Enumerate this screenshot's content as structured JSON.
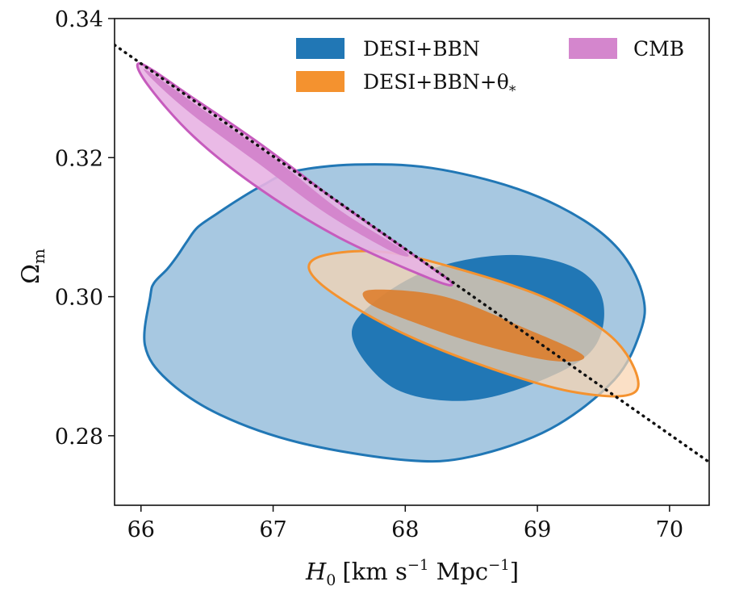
{
  "chart_data": {
    "type": "contour",
    "xlabel": {
      "main": "H",
      "sub": "0",
      "units": "[km s",
      "exp1": "−1",
      "mid": " Mpc",
      "exp2": "−1",
      "end": "]"
    },
    "ylabel": {
      "main": "Ω",
      "sub": "m"
    },
    "xlim": [
      65.8,
      70.3
    ],
    "ylim": [
      0.27,
      0.34
    ],
    "xticks": [
      66,
      67,
      68,
      69,
      70
    ],
    "yticks": [
      0.28,
      0.3,
      0.32,
      0.34
    ],
    "xtick_labels": [
      "66",
      "67",
      "68",
      "69",
      "70"
    ],
    "ytick_labels": [
      "0.28",
      "0.30",
      "0.32",
      "0.34"
    ],
    "legend": {
      "position": "top-center",
      "entries": [
        {
          "id": "desi",
          "label": "DESI+BBN",
          "color": "#2177b5"
        },
        {
          "id": "theta",
          "label": "DESI+BBN+θ",
          "sub": "*",
          "color": "#f4922f"
        },
        {
          "id": "cmb",
          "label": "CMB",
          "color": "#d486cd"
        }
      ]
    },
    "series": [
      {
        "id": "desi",
        "outer_fill": "#a7c8e1",
        "inner_fill": "#2177b5",
        "edge": "#2177b5",
        "contour_95": [
          [
            66.07,
            0.3
          ],
          [
            66.1,
            0.302
          ],
          [
            66.2,
            0.304
          ],
          [
            66.28,
            0.306
          ],
          [
            66.35,
            0.308
          ],
          [
            66.43,
            0.31
          ],
          [
            66.58,
            0.312
          ],
          [
            66.74,
            0.314
          ],
          [
            66.92,
            0.316
          ],
          [
            67.15,
            0.318
          ],
          [
            67.62,
            0.319
          ],
          [
            68.2,
            0.3185
          ],
          [
            68.85,
            0.3155
          ],
          [
            69.35,
            0.311
          ],
          [
            69.65,
            0.306
          ],
          [
            69.8,
            0.3
          ],
          [
            69.78,
            0.295
          ],
          [
            69.58,
            0.288
          ],
          [
            69.1,
            0.281
          ],
          [
            68.5,
            0.277
          ],
          [
            68.0,
            0.2765
          ],
          [
            67.2,
            0.279
          ],
          [
            66.6,
            0.283
          ],
          [
            66.2,
            0.288
          ],
          [
            66.03,
            0.293
          ]
        ],
        "contour_68": [
          [
            67.6,
            0.294
          ],
          [
            67.75,
            0.299
          ],
          [
            68.2,
            0.304
          ],
          [
            68.8,
            0.306
          ],
          [
            69.3,
            0.304
          ],
          [
            69.5,
            0.299
          ],
          [
            69.4,
            0.292
          ],
          [
            68.9,
            0.287
          ],
          [
            68.4,
            0.285
          ],
          [
            67.9,
            0.287
          ]
        ]
      },
      {
        "id": "theta",
        "outer_fill": "#fad4b0",
        "inner_fill": "#de7a26",
        "edge": "#f4922f",
        "contour_95": [
          [
            67.32,
            0.3055
          ],
          [
            67.8,
            0.3065
          ],
          [
            68.4,
            0.304
          ],
          [
            69.1,
            0.2995
          ],
          [
            69.6,
            0.2935
          ],
          [
            69.75,
            0.2865
          ],
          [
            69.3,
            0.2862
          ],
          [
            68.6,
            0.29
          ],
          [
            67.9,
            0.2955
          ],
          [
            67.35,
            0.302
          ]
        ],
        "contour_68": [
          [
            67.75,
            0.301
          ],
          [
            68.3,
            0.3
          ],
          [
            68.9,
            0.2955
          ],
          [
            69.35,
            0.2915
          ],
          [
            69.1,
            0.2908
          ],
          [
            68.5,
            0.2935
          ],
          [
            67.9,
            0.2975
          ],
          [
            67.7,
            0.2995
          ]
        ]
      },
      {
        "id": "cmb",
        "outer_fill": "#e8b3e3",
        "inner_fill": "#d486cd",
        "edge": "#c65bbd",
        "contour_95": [
          [
            66.0,
            0.3335
          ],
          [
            66.4,
            0.3285
          ],
          [
            66.9,
            0.322
          ],
          [
            67.5,
            0.3135
          ],
          [
            68.1,
            0.3055
          ],
          [
            68.35,
            0.302
          ],
          [
            68.2,
            0.3025
          ],
          [
            67.5,
            0.3085
          ],
          [
            66.9,
            0.3155
          ],
          [
            66.4,
            0.323
          ],
          [
            66.05,
            0.3305
          ]
        ],
        "contour_68": [
          [
            66.05,
            0.3325
          ],
          [
            66.5,
            0.3265
          ],
          [
            67.0,
            0.32
          ],
          [
            67.5,
            0.3125
          ],
          [
            68.0,
            0.3065
          ],
          [
            67.9,
            0.3065
          ],
          [
            67.4,
            0.312
          ],
          [
            66.9,
            0.319
          ],
          [
            66.4,
            0.326
          ],
          [
            66.1,
            0.331
          ]
        ]
      }
    ],
    "reference_line": {
      "style": "dotted",
      "color": "#111111",
      "x": [
        65.8,
        70.3
      ],
      "y": [
        0.3362,
        0.2762
      ]
    }
  }
}
